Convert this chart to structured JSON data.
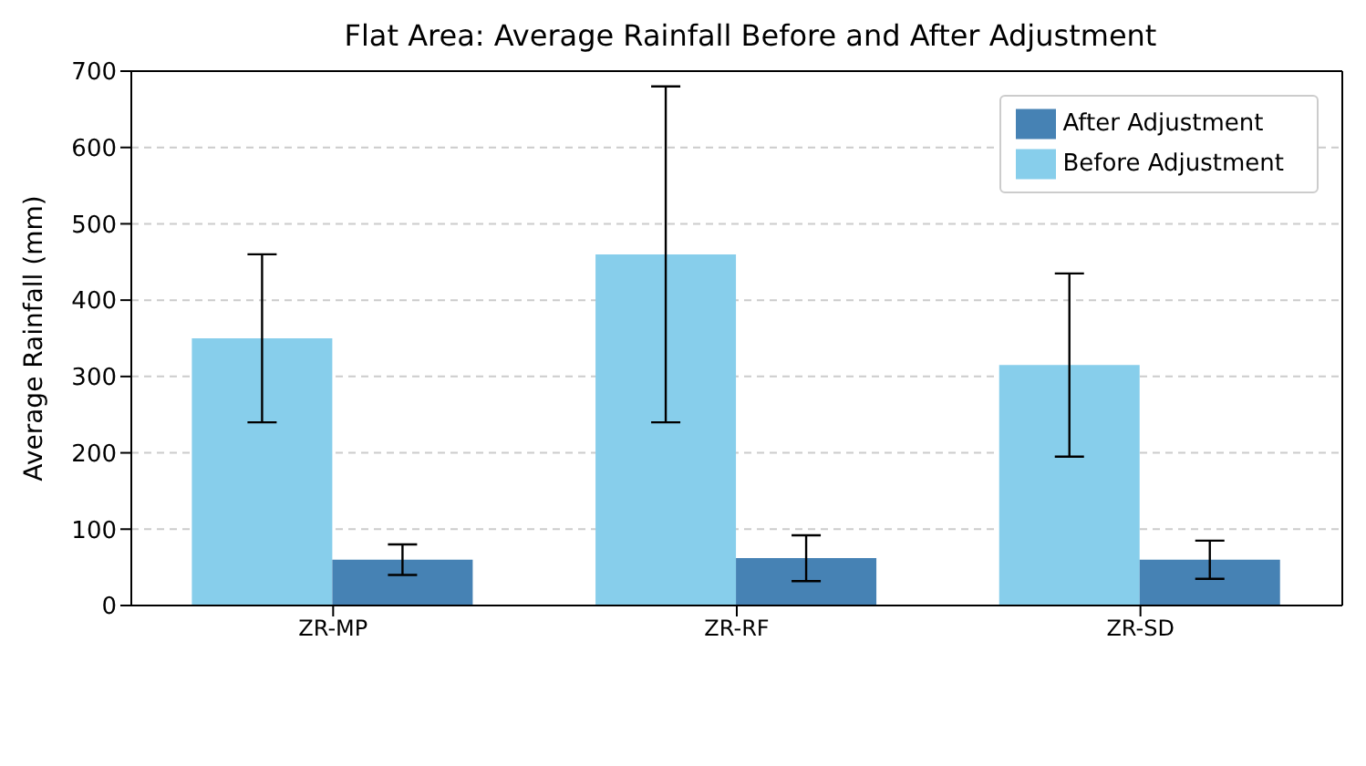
{
  "chart_data": {
    "type": "bar",
    "title": "Flat Area: Average Rainfall Before and After Adjustment",
    "ylabel": "Average Rainfall (mm)",
    "categories": [
      "ZR-MP",
      "ZR-RF",
      "ZR-SD"
    ],
    "series": [
      {
        "name": "Before Adjustment",
        "color": "#87ceeb",
        "values": [
          350,
          460,
          315
        ],
        "errors": [
          110,
          220,
          120
        ]
      },
      {
        "name": "After Adjustment",
        "color": "#4682b4",
        "values": [
          60,
          62,
          60
        ],
        "errors": [
          20,
          30,
          25
        ]
      }
    ],
    "ylim": [
      0,
      700
    ],
    "yticks": [
      0,
      100,
      200,
      300,
      400,
      500,
      600,
      700
    ],
    "grid": "y",
    "legend": "top right"
  }
}
